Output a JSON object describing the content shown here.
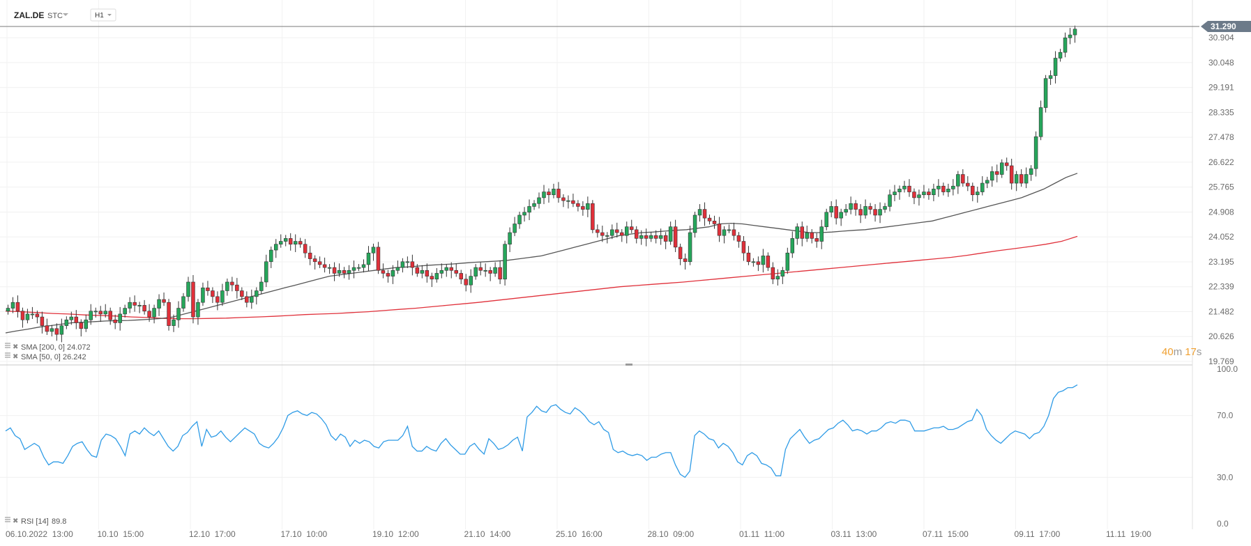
{
  "header": {
    "symbol": "ZAL.DE",
    "market": "STC",
    "interval": "H1"
  },
  "colors": {
    "up": "#26a65b",
    "down": "#e0303a",
    "sma200": "#e0303a",
    "sma50": "#555555",
    "rsi": "#2e9be6",
    "price_tag": "#6c7a89",
    "timer": "#f0a030"
  },
  "indicators": {
    "sma200": {
      "label": "SMA [200, 0]",
      "value": "24.072"
    },
    "sma50": {
      "label": "SMA [50, 0]",
      "value": "26.242"
    },
    "rsi": {
      "label": "RSI [14]",
      "value": "89.8"
    }
  },
  "timer": {
    "minutes": "40",
    "m": "m",
    "seconds": "17",
    "s": "s"
  },
  "last_price": "31.290",
  "chart_data": [
    {
      "type": "candlestick",
      "price_ticks": [
        "30.904",
        "30.048",
        "29.191",
        "28.335",
        "27.478",
        "26.622",
        "25.765",
        "24.908",
        "24.052",
        "23.195",
        "22.339",
        "21.482",
        "20.626",
        "19.769"
      ],
      "ylim": [
        19.769,
        31.29
      ],
      "x_labels": [
        "06.10.2022  13:00",
        "10.10  15:00",
        "12.10  17:00",
        "17.10  10:00",
        "19.10  12:00",
        "21.10  14:00",
        "25.10  16:00",
        "28.10  09:00",
        "01.11  11:00",
        "03.11  13:00",
        "07.11  15:00",
        "09.11  17:00",
        "11.11  19:00"
      ],
      "close": [
        21.6,
        21.8,
        21.5,
        21.2,
        21.4,
        21.4,
        21.3,
        21.0,
        20.8,
        20.9,
        20.7,
        21.0,
        21.2,
        21.3,
        21.1,
        20.9,
        21.2,
        21.5,
        21.5,
        21.4,
        21.5,
        21.2,
        21.1,
        21.4,
        21.6,
        21.8,
        21.7,
        21.7,
        21.5,
        21.3,
        21.6,
        21.9,
        21.8,
        21.0,
        21.2,
        21.6,
        22.0,
        22.5,
        21.3,
        21.8,
        22.3,
        22.2,
        22.0,
        21.8,
        22.2,
        22.5,
        22.4,
        22.2,
        22.0,
        21.8,
        22.0,
        22.2,
        22.5,
        23.2,
        23.6,
        23.8,
        23.9,
        24.0,
        23.8,
        23.9,
        23.8,
        23.5,
        23.3,
        23.2,
        23.1,
        23.0,
        23.0,
        22.8,
        22.9,
        22.8,
        22.9,
        23.0,
        23.0,
        23.1,
        23.5,
        23.7,
        22.9,
        22.8,
        22.7,
        22.9,
        23.0,
        23.2,
        23.2,
        23.0,
        22.8,
        22.9,
        22.7,
        22.6,
        22.8,
        22.9,
        23.0,
        22.9,
        22.8,
        22.6,
        22.4,
        22.7,
        23.0,
        22.9,
        22.9,
        22.8,
        23.0,
        22.6,
        23.8,
        24.2,
        24.5,
        24.8,
        24.9,
        25.1,
        25.2,
        25.4,
        25.6,
        25.5,
        25.7,
        25.4,
        25.3,
        25.3,
        25.2,
        25.1,
        25.0,
        25.2,
        24.3,
        24.2,
        24.1,
        24.1,
        24.3,
        24.2,
        24.1,
        24.4,
        24.3,
        24.0,
        24.1,
        24.0,
        24.1,
        24.0,
        24.1,
        23.9,
        24.4,
        23.7,
        23.3,
        23.2,
        24.2,
        24.8,
        25.0,
        24.7,
        24.6,
        24.5,
        24.1,
        24.3,
        24.3,
        24.1,
        23.9,
        23.5,
        23.2,
        23.2,
        23.1,
        23.4,
        23.0,
        22.6,
        22.7,
        22.9,
        23.5,
        24.0,
        24.4,
        24.0,
        24.2,
        24.0,
        23.9,
        24.4,
        24.9,
        25.1,
        24.7,
        24.9,
        25.0,
        25.2,
        25.0,
        24.8,
        25.1,
        25.0,
        24.8,
        25.0,
        25.1,
        25.5,
        25.6,
        25.7,
        25.8,
        25.6,
        25.4,
        25.5,
        25.6,
        25.5,
        25.7,
        25.8,
        25.6,
        25.7,
        25.8,
        26.2,
        25.9,
        25.8,
        25.5,
        25.6,
        25.9,
        26.0,
        26.3,
        26.2,
        26.6,
        26.5,
        25.9,
        26.2,
        25.9,
        26.2,
        26.4,
        27.5,
        28.5,
        29.5,
        29.6,
        30.2,
        30.4,
        30.9,
        31.0,
        31.2
      ]
    },
    {
      "type": "line",
      "series": [
        {
          "name": "SMA [50, 0]",
          "values": [
            20.75,
            20.82,
            20.88,
            20.95,
            21.0,
            21.05,
            21.1,
            21.12,
            21.14,
            21.16,
            21.17,
            21.18,
            21.2,
            21.22,
            21.25,
            21.3,
            21.4,
            21.5,
            21.6,
            21.7,
            21.8,
            21.9,
            22.0,
            22.1,
            22.2,
            22.3,
            22.4,
            22.5,
            22.6,
            22.7,
            22.75,
            22.8,
            22.85,
            22.9,
            22.95,
            23.0,
            23.02,
            23.05,
            23.08,
            23.1,
            23.12,
            23.15,
            23.18,
            23.2,
            23.22,
            23.25,
            23.3,
            23.35,
            23.4,
            23.5,
            23.6,
            23.7,
            23.8,
            23.9,
            24.0,
            24.1,
            24.15,
            24.2,
            24.22,
            24.25,
            24.28,
            24.3,
            24.35,
            24.4,
            24.5,
            24.52,
            24.5,
            24.45,
            24.4,
            24.35,
            24.3,
            24.25,
            24.2,
            24.2,
            24.22,
            24.25,
            24.28,
            24.3,
            24.35,
            24.4,
            24.45,
            24.5,
            24.55,
            24.6,
            24.7,
            24.8,
            24.9,
            25.0,
            25.1,
            25.2,
            25.3,
            25.4,
            25.55,
            25.7,
            25.9,
            26.1,
            26.24
          ]
        },
        {
          "name": "SMA [200, 0]",
          "values": [
            21.5,
            21.48,
            21.45,
            21.42,
            21.4,
            21.37,
            21.35,
            21.33,
            21.3,
            21.28,
            21.25,
            21.24,
            21.24,
            21.25,
            21.26,
            21.28,
            21.3,
            21.32,
            21.35,
            21.38,
            21.4,
            21.42,
            21.45,
            21.48,
            21.52,
            21.56,
            21.6,
            21.65,
            21.7,
            21.75,
            21.8,
            21.86,
            21.92,
            21.98,
            22.04,
            22.1,
            22.16,
            22.22,
            22.28,
            22.34,
            22.38,
            22.42,
            22.46,
            22.5,
            22.55,
            22.6,
            22.65,
            22.7,
            22.75,
            22.8,
            22.85,
            22.9,
            22.95,
            23.0,
            23.05,
            23.1,
            23.15,
            23.2,
            23.25,
            23.3,
            23.35,
            23.42,
            23.5,
            23.58,
            23.65,
            23.72,
            23.8,
            23.9,
            24.07
          ]
        }
      ]
    },
    {
      "type": "line",
      "name": "RSI [14]",
      "y_ticks": [
        "100.0",
        "70.0",
        "30.0",
        "0.0"
      ],
      "ylim": [
        0,
        100
      ],
      "values": [
        60,
        62,
        57,
        55,
        48,
        50,
        52,
        50,
        43,
        38,
        40,
        40,
        39,
        44,
        50,
        52,
        53,
        48,
        44,
        43,
        54,
        58,
        57,
        55,
        50,
        44,
        58,
        60,
        58,
        62,
        59,
        57,
        60,
        55,
        50,
        47,
        50,
        57,
        59,
        63,
        66,
        50,
        61,
        56,
        57,
        60,
        56,
        53,
        56,
        59,
        62,
        60,
        58,
        52,
        50,
        49,
        52,
        56,
        62,
        70,
        72,
        73,
        71,
        70,
        72,
        71,
        68,
        64,
        57,
        54,
        58,
        56,
        50,
        54,
        52,
        54,
        53,
        50,
        49,
        53,
        54,
        54,
        54,
        57,
        63,
        50,
        47,
        47,
        50,
        48,
        47,
        52,
        55,
        51,
        48,
        45,
        45,
        50,
        52,
        48,
        45,
        55,
        52,
        48,
        49,
        51,
        54,
        56,
        47,
        69,
        72,
        76,
        73,
        72,
        76,
        77,
        74,
        72,
        71,
        75,
        73,
        70,
        66,
        64,
        66,
        61,
        59,
        48,
        46,
        47,
        45,
        44,
        45,
        44,
        41,
        43,
        43,
        45,
        46,
        46,
        38,
        32,
        30,
        34,
        57,
        60,
        58,
        55,
        54,
        49,
        52,
        50,
        46,
        40,
        38,
        44,
        46,
        44,
        39,
        38,
        36,
        31,
        31,
        48,
        55,
        58,
        61,
        56,
        52,
        54,
        55,
        58,
        61,
        62,
        65,
        67,
        64,
        60,
        61,
        60,
        58,
        60,
        60,
        62,
        65,
        66,
        65,
        67,
        67,
        66,
        60,
        60,
        60,
        61,
        62,
        62,
        63,
        61,
        61,
        62,
        64,
        66,
        67,
        74,
        70,
        61,
        57,
        54,
        52,
        55,
        58,
        60,
        59,
        58,
        55,
        58,
        59,
        63,
        70,
        81,
        85,
        86,
        88,
        88,
        89.8
      ]
    }
  ]
}
